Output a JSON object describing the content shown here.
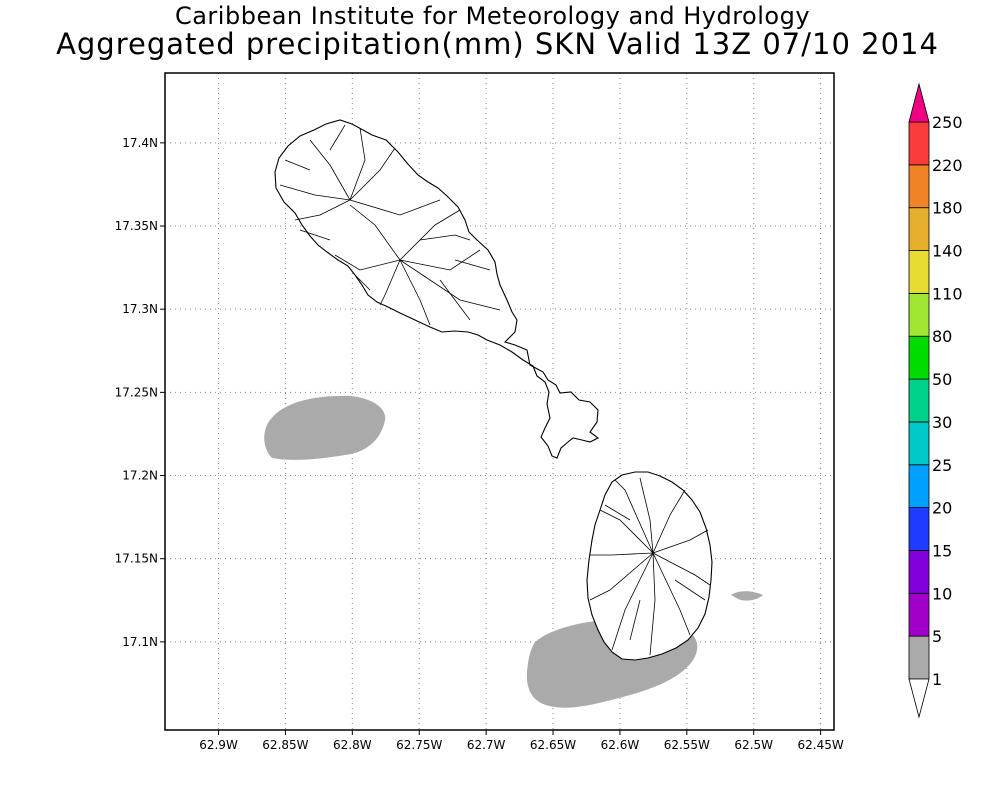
{
  "title_line1": "Caribbean Institute for Meteorology and Hydrology",
  "title_line2": "Aggregated precipitation(mm) SKN Valid 13Z 07/10 2014",
  "map": {
    "lon_range": [
      -62.94,
      -62.44
    ],
    "lat_range": [
      17.047,
      17.442
    ],
    "grid": "dotted",
    "lat_ticks": [
      {
        "value": 17.4,
        "label": "17.4N"
      },
      {
        "value": 17.35,
        "label": "17.35N"
      },
      {
        "value": 17.3,
        "label": "17.3N"
      },
      {
        "value": 17.25,
        "label": "17.25N"
      },
      {
        "value": 17.2,
        "label": "17.2N"
      },
      {
        "value": 17.15,
        "label": "17.15N"
      },
      {
        "value": 17.1,
        "label": "17.1N"
      }
    ],
    "lon_ticks": [
      {
        "value": -62.9,
        "label": "62.9W"
      },
      {
        "value": -62.85,
        "label": "62.85W"
      },
      {
        "value": -62.8,
        "label": "62.8W"
      },
      {
        "value": -62.75,
        "label": "62.75W"
      },
      {
        "value": -62.7,
        "label": "62.7W"
      },
      {
        "value": -62.65,
        "label": "62.65W"
      },
      {
        "value": -62.6,
        "label": "62.6W"
      },
      {
        "value": -62.55,
        "label": "62.55W"
      },
      {
        "value": -62.5,
        "label": "62.5W"
      },
      {
        "value": -62.45,
        "label": "62.45W"
      }
    ],
    "islands": [
      "Saint Kitts",
      "Nevis"
    ],
    "precip_areas": [
      {
        "band": "1-5 mm",
        "color": "#aaaaaa",
        "center": [
          -62.82,
          17.235
        ]
      },
      {
        "band": "1-5 mm",
        "color": "#aaaaaa",
        "center": [
          -62.61,
          17.085
        ]
      },
      {
        "band": "1-5 mm",
        "color": "#aaaaaa",
        "center": [
          -62.51,
          17.133
        ]
      }
    ]
  },
  "colorbar": {
    "levels": [
      {
        "label": "1",
        "color": "#ffffff"
      },
      {
        "label": "5",
        "color": "#aaaaaa"
      },
      {
        "label": "10",
        "color": "#a000c8"
      },
      {
        "label": "15",
        "color": "#8200dc"
      },
      {
        "label": "20",
        "color": "#1e3cff"
      },
      {
        "label": "25",
        "color": "#00a0ff"
      },
      {
        "label": "30",
        "color": "#00c8c8"
      },
      {
        "label": "50",
        "color": "#00d28c"
      },
      {
        "label": "80",
        "color": "#00dc00"
      },
      {
        "label": "110",
        "color": "#a0e632"
      },
      {
        "label": "140",
        "color": "#e6dc32"
      },
      {
        "label": "180",
        "color": "#e6af2d"
      },
      {
        "label": "220",
        "color": "#f08228"
      },
      {
        "label": "250",
        "color": "#fa3c3c"
      }
    ],
    "top_color": "#f00082",
    "bottom_color": "#ffffff"
  }
}
